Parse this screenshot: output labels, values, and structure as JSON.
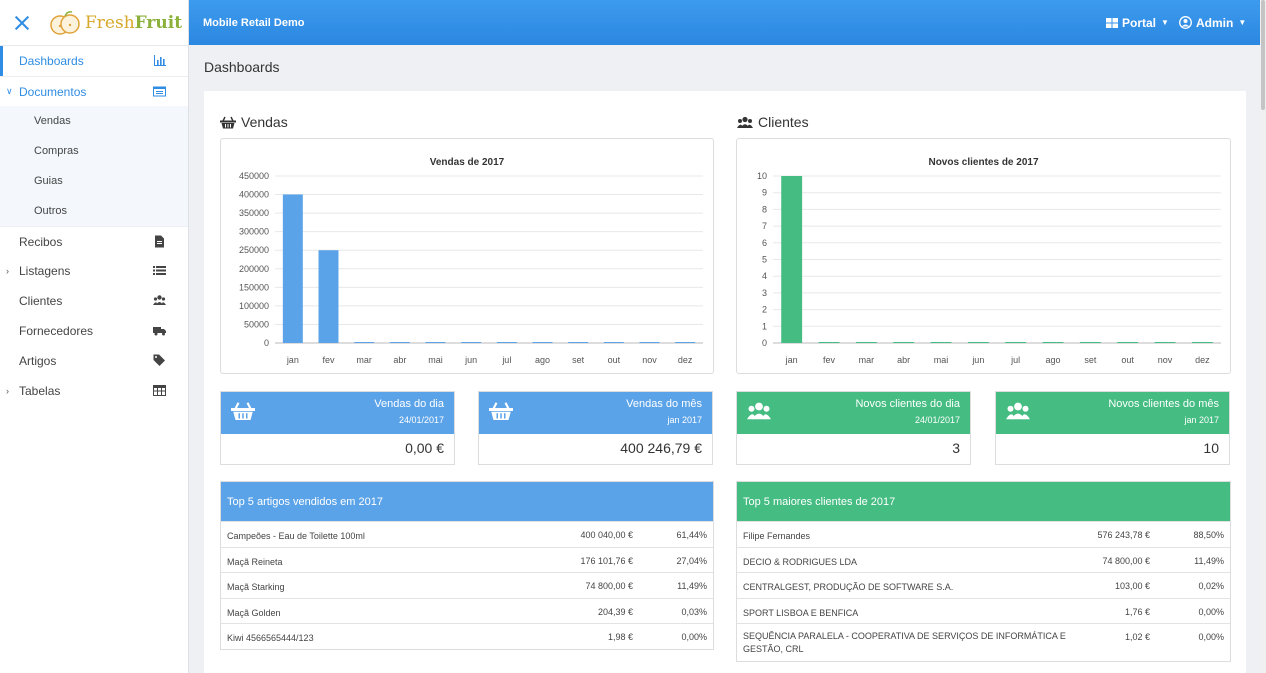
{
  "logo": {
    "part1": "Fresh",
    "part2": "Fruit"
  },
  "sidebar": {
    "items": [
      {
        "label": "Dashboards",
        "icon": "bar-chart-icon"
      },
      {
        "label": "Documentos",
        "icon": "list-alt-icon"
      },
      {
        "label": "Recibos",
        "icon": "file-icon"
      },
      {
        "label": "Listagens",
        "icon": "list-icon"
      },
      {
        "label": "Clientes",
        "icon": "users-icon"
      },
      {
        "label": "Fornecedores",
        "icon": "truck-icon"
      },
      {
        "label": "Artigos",
        "icon": "tags-icon"
      },
      {
        "label": "Tabelas",
        "icon": "table-icon"
      }
    ],
    "sub_items": [
      "Vendas",
      "Compras",
      "Guias",
      "Outros"
    ]
  },
  "header": {
    "app_title": "Mobile Retail Demo",
    "portal": "Portal",
    "user": "Admin"
  },
  "page_title": "Dashboards",
  "sections": {
    "vendas": "Vendas",
    "clientes": "Clientes"
  },
  "colors": {
    "accent": "#2f8de4",
    "blue": "#5ba3e8",
    "green": "#44bc82"
  },
  "chart_data": [
    {
      "type": "bar",
      "title": "Vendas de 2017",
      "categories": [
        "jan",
        "fev",
        "mar",
        "abr",
        "mai",
        "jun",
        "jul",
        "ago",
        "set",
        "out",
        "nov",
        "dez"
      ],
      "values": [
        400246.79,
        250000,
        0,
        0,
        0,
        0,
        0,
        0,
        0,
        0,
        0,
        0
      ],
      "ylim": [
        0,
        450000
      ],
      "yticks": [
        0,
        50000,
        100000,
        150000,
        200000,
        250000,
        300000,
        350000,
        400000,
        450000
      ],
      "color": "#5ba3e8",
      "grid": true
    },
    {
      "type": "bar",
      "title": "Novos clientes de 2017",
      "categories": [
        "jan",
        "fev",
        "mar",
        "abr",
        "mai",
        "jun",
        "jul",
        "ago",
        "set",
        "out",
        "nov",
        "dez"
      ],
      "values": [
        10,
        0,
        0,
        0,
        0,
        0,
        0,
        0,
        0,
        0,
        0,
        0
      ],
      "ylim": [
        0,
        10
      ],
      "yticks": [
        0,
        1,
        2,
        3,
        4,
        5,
        6,
        7,
        8,
        9,
        10
      ],
      "color": "#44bc82",
      "grid": true
    }
  ],
  "stats": [
    {
      "title": "Vendas do dia",
      "sub": "24/01/2017",
      "value": "0,00 €"
    },
    {
      "title": "Vendas do mês",
      "sub": "jan 2017",
      "value": "400 246,79 €"
    },
    {
      "title": "Novos clientes do dia",
      "sub": "24/01/2017",
      "value": "3"
    },
    {
      "title": "Novos clientes do mês",
      "sub": "jan 2017",
      "value": "10"
    }
  ],
  "top_articles": {
    "title": "Top 5 artigos vendidos em 2017",
    "rows": [
      {
        "name": "Campeões - Eau de Toilette 100ml",
        "value": "400 040,00 €",
        "pct": "61,44%"
      },
      {
        "name": "Maçã Reineta",
        "value": "176 101,76 €",
        "pct": "27,04%"
      },
      {
        "name": "Maçã Starking",
        "value": "74 800,00 €",
        "pct": "11,49%"
      },
      {
        "name": "Maçã Golden",
        "value": "204,39 €",
        "pct": "0,03%"
      },
      {
        "name": "Kiwi 4566565444/123",
        "value": "1,98 €",
        "pct": "0,00%"
      }
    ]
  },
  "top_clients": {
    "title": "Top 5 maiores clientes de 2017",
    "rows": [
      {
        "name": "Filipe Fernandes",
        "value": "576 243,78 €",
        "pct": "88,50%"
      },
      {
        "name": "DECIO & RODRIGUES LDA",
        "value": "74 800,00 €",
        "pct": "11,49%"
      },
      {
        "name": "CENTRALGEST, PRODUÇÃO DE SOFTWARE S.A.",
        "value": "103,00 €",
        "pct": "0,02%"
      },
      {
        "name": "SPORT LISBOA E BENFICA",
        "value": "1,76 €",
        "pct": "0,00%"
      },
      {
        "name": "SEQUÊNCIA PARALELA - COOPERATIVA DE SERVIÇOS DE INFORMÁTICA E GESTÃO, CRL",
        "value": "1,02 €",
        "pct": "0,00%"
      }
    ]
  }
}
